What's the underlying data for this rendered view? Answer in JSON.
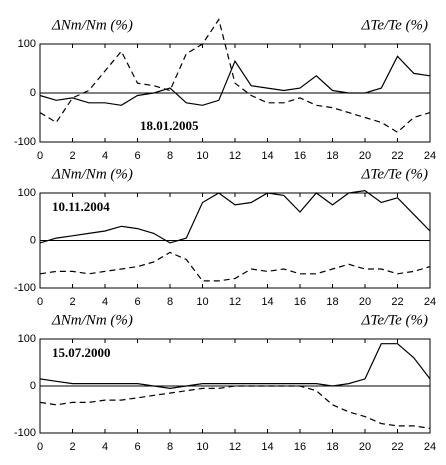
{
  "chart_data": [
    {
      "type": "line",
      "left_label": "ΔNm/Nm (%)",
      "right_label": "ΔTe/Te (%)",
      "date": "18.01.2005",
      "x": [
        0,
        1,
        2,
        3,
        4,
        5,
        6,
        7,
        8,
        9,
        10,
        11,
        12,
        13,
        14,
        15,
        16,
        17,
        18,
        19,
        20,
        21,
        22,
        23,
        24
      ],
      "series": [
        {
          "color": "#000",
          "dash": false,
          "values": [
            -5,
            -15,
            -10,
            -20,
            -20,
            -25,
            -5,
            0,
            10,
            -20,
            -25,
            -15,
            65,
            15,
            10,
            5,
            10,
            35,
            5,
            0,
            0,
            10,
            75,
            40,
            35
          ]
        },
        {
          "color": "#000",
          "dash": true,
          "values": [
            -40,
            -60,
            -10,
            5,
            45,
            85,
            20,
            15,
            5,
            80,
            100,
            150,
            20,
            -5,
            -20,
            -20,
            -10,
            -25,
            -30,
            -40,
            -50,
            -60,
            -80,
            -50,
            -40
          ]
        }
      ],
      "xlim": [
        0,
        24
      ],
      "xticks": [
        0,
        2,
        4,
        6,
        8,
        10,
        12,
        14,
        16,
        18,
        20,
        22,
        24
      ],
      "ylim": [
        -100,
        100
      ],
      "yticks": [
        -100,
        0,
        100
      ],
      "zero_line": true
    },
    {
      "type": "line",
      "left_label": "ΔNm/Nm (%)",
      "right_label": "ΔTe/Te (%)",
      "date": "10.11.2004",
      "x": [
        0,
        1,
        2,
        3,
        4,
        5,
        6,
        7,
        8,
        9,
        10,
        11,
        12,
        13,
        14,
        15,
        16,
        17,
        18,
        19,
        20,
        21,
        22,
        23,
        24
      ],
      "series": [
        {
          "color": "#000",
          "dash": false,
          "values": [
            -5,
            5,
            10,
            15,
            20,
            30,
            25,
            15,
            -5,
            5,
            80,
            100,
            75,
            80,
            100,
            95,
            60,
            100,
            75,
            100,
            105,
            80,
            90,
            55,
            20
          ]
        },
        {
          "color": "#000",
          "dash": true,
          "values": [
            -70,
            -65,
            -65,
            -70,
            -65,
            -60,
            -55,
            -45,
            -25,
            -40,
            -85,
            -85,
            -80,
            -60,
            -65,
            -60,
            -70,
            -70,
            -60,
            -50,
            -60,
            -60,
            -70,
            -65,
            -55
          ]
        }
      ],
      "xlim": [
        0,
        24
      ],
      "xticks": [
        0,
        2,
        4,
        6,
        8,
        10,
        12,
        14,
        16,
        18,
        20,
        22,
        24
      ],
      "ylim": [
        -100,
        100
      ],
      "yticks": [
        -100,
        0,
        100
      ],
      "zero_line": true
    },
    {
      "type": "line",
      "left_label": "ΔNm/Nm (%)",
      "right_label": "ΔTe/Te (%)",
      "date": "15.07.2000",
      "x": [
        0,
        1,
        2,
        3,
        4,
        5,
        6,
        7,
        8,
        9,
        10,
        11,
        12,
        13,
        14,
        15,
        16,
        17,
        18,
        19,
        20,
        21,
        22,
        23,
        24
      ],
      "series": [
        {
          "color": "#000",
          "dash": false,
          "values": [
            15,
            10,
            5,
            5,
            5,
            5,
            5,
            0,
            -5,
            0,
            5,
            5,
            5,
            5,
            5,
            5,
            5,
            5,
            0,
            5,
            15,
            90,
            90,
            60,
            15
          ]
        },
        {
          "color": "#000",
          "dash": true,
          "values": [
            -35,
            -40,
            -35,
            -35,
            -30,
            -30,
            -25,
            -20,
            -15,
            -10,
            -5,
            -5,
            0,
            0,
            0,
            0,
            0,
            -10,
            -40,
            -55,
            -65,
            -80,
            -85,
            -85,
            -90
          ]
        }
      ],
      "xlim": [
        0,
        24
      ],
      "xticks": [
        0,
        2,
        4,
        6,
        8,
        10,
        12,
        14,
        16,
        18,
        20,
        22,
        24
      ],
      "ylim": [
        -100,
        100
      ],
      "yticks": [
        -100,
        0,
        100
      ],
      "zero_line": true
    }
  ]
}
